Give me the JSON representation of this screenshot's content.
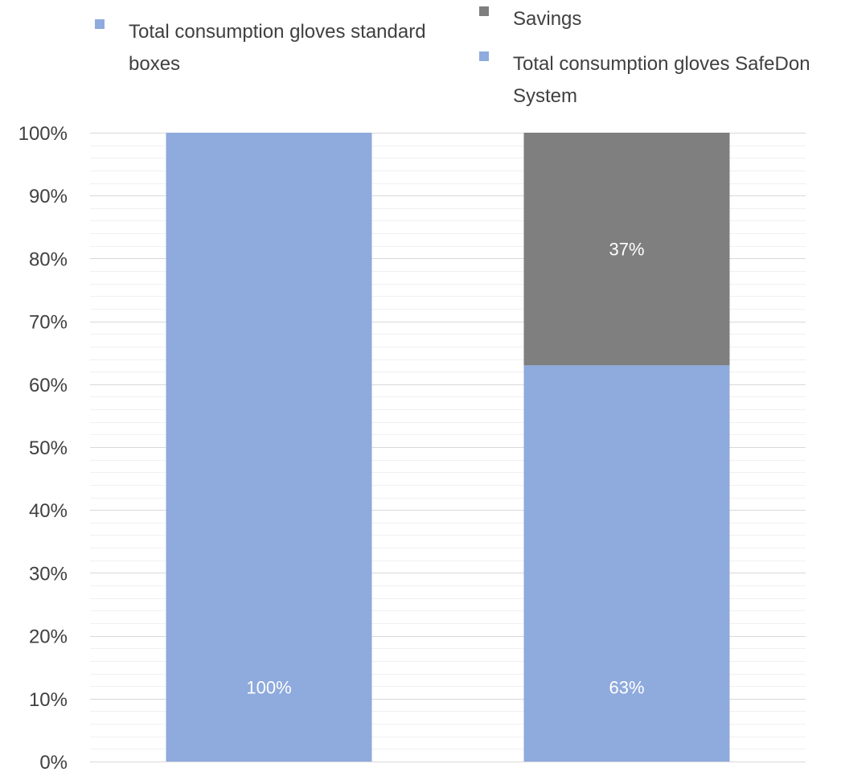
{
  "chart_data": {
    "type": "bar",
    "stacked": true,
    "categories": [
      "",
      ""
    ],
    "ylim": [
      0,
      100
    ],
    "y_unit": "%",
    "y_ticks": [
      "0%",
      "10%",
      "20%",
      "30%",
      "40%",
      "50%",
      "60%",
      "70%",
      "80%",
      "90%",
      "100%"
    ],
    "grid": true,
    "legend_position": "top",
    "series": [
      {
        "name": "Total consumption gloves standard boxes",
        "legend_lines": [
          "Total consumption gloves standard",
          "boxes"
        ],
        "color": "#8faadc",
        "values": [
          100,
          null
        ],
        "labels": [
          "100%",
          null
        ],
        "label_color": "#ffffff"
      },
      {
        "name": "Total consumption gloves SafeDon System",
        "legend_lines": [
          "Total consumption gloves SafeDon",
          "System"
        ],
        "color": "#8faadc",
        "values": [
          null,
          63
        ],
        "labels": [
          null,
          "63%"
        ],
        "label_color": "#ffffff"
      },
      {
        "name": "Savings",
        "legend_lines": [
          "Savings"
        ],
        "color": "#7f7f7f",
        "values": [
          null,
          37
        ],
        "labels": [
          null,
          "37%"
        ],
        "label_color": "#ffffff"
      }
    ]
  }
}
